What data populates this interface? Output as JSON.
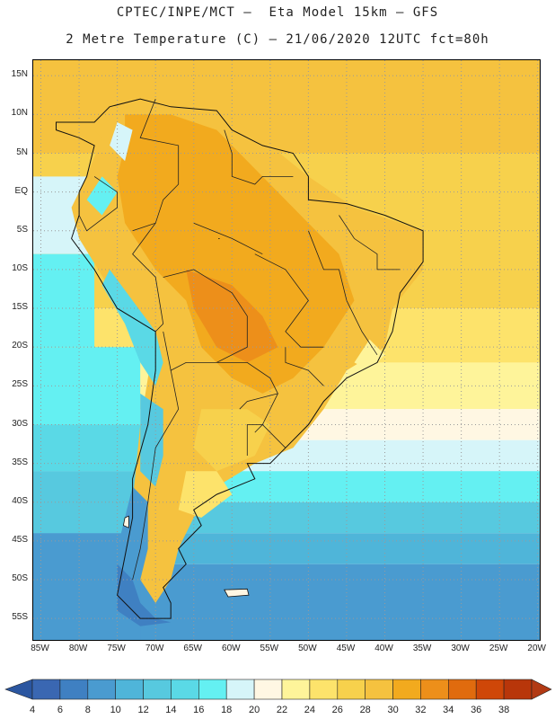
{
  "header": {
    "line1": "CPTEC/INPE/MCT –  Eta Model 15km – GFS",
    "line2": "2 Metre Temperature (C) – 21/06/2020 12UTC fct=80h"
  },
  "map": {
    "latitude_labels": [
      "15N",
      "10N",
      "5N",
      "EQ",
      "5S",
      "10S",
      "15S",
      "20S",
      "25S",
      "30S",
      "35S",
      "40S",
      "45S",
      "50S",
      "55S"
    ],
    "latitude_values": [
      15,
      10,
      5,
      0,
      -5,
      -10,
      -15,
      -20,
      -25,
      -30,
      -35,
      -40,
      -45,
      -50,
      -55
    ],
    "longitude_labels": [
      "85W",
      "80W",
      "75W",
      "70W",
      "65W",
      "60W",
      "55W",
      "50W",
      "45W",
      "40W",
      "35W",
      "30W",
      "25W",
      "20W"
    ],
    "longitude_values": [
      -85,
      -80,
      -75,
      -70,
      -65,
      -60,
      -55,
      -50,
      -45,
      -40,
      -35,
      -30,
      -25,
      -20
    ],
    "extent": {
      "lon_min": -86,
      "lon_max": -19.5,
      "lat_min": -58,
      "lat_max": 17
    },
    "ocean_bands": [
      {
        "from_lat": 17,
        "to_lat": 5,
        "value": 28
      },
      {
        "from_lat": 5,
        "to_lat": -15,
        "value": 26
      },
      {
        "from_lat": -15,
        "to_lat": -22,
        "value": 24
      },
      {
        "from_lat": -22,
        "to_lat": -28,
        "value": 22
      },
      {
        "from_lat": -28,
        "to_lat": -32,
        "value": 20
      },
      {
        "from_lat": -32,
        "to_lat": -36,
        "value": 18
      },
      {
        "from_lat": -36,
        "to_lat": -40,
        "value": 16
      },
      {
        "from_lat": -40,
        "to_lat": -44,
        "value": 12
      },
      {
        "from_lat": -44,
        "to_lat": -48,
        "value": 10
      },
      {
        "from_lat": -48,
        "to_lat": -58,
        "value": 8
      }
    ],
    "pacific_bands": [
      {
        "from_lat": 2,
        "to_lat": -8,
        "value": 18
      },
      {
        "from_lat": -8,
        "to_lat": -20,
        "value": 16
      },
      {
        "from_lat": -20,
        "to_lat": -30,
        "value": 16
      },
      {
        "from_lat": -30,
        "to_lat": -36,
        "value": 14
      },
      {
        "from_lat": -36,
        "to_lat": -44,
        "value": 12
      },
      {
        "from_lat": -44,
        "to_lat": -58,
        "value": 8
      }
    ],
    "land_regions": [
      {
        "value": 28,
        "poly": [
          [
            -78,
            8
          ],
          [
            -72,
            12
          ],
          [
            -62,
            11
          ],
          [
            -55,
            6
          ],
          [
            -50,
            2
          ],
          [
            -44,
            -2
          ],
          [
            -35,
            -5
          ],
          [
            -35,
            -10
          ],
          [
            -39,
            -15
          ],
          [
            -40,
            -20
          ],
          [
            -45,
            -23
          ],
          [
            -48,
            -28
          ],
          [
            -52,
            -33
          ],
          [
            -57,
            -35
          ],
          [
            -62,
            -38
          ],
          [
            -65,
            -42
          ],
          [
            -67,
            -46
          ],
          [
            -68,
            -50
          ],
          [
            -70,
            -53
          ],
          [
            -72,
            -50
          ],
          [
            -73,
            -40
          ],
          [
            -72,
            -30
          ],
          [
            -70,
            -18
          ],
          [
            -75,
            -14
          ],
          [
            -80,
            -6
          ],
          [
            -81,
            -2
          ],
          [
            -79,
            2
          ],
          [
            -77,
            7
          ]
        ]
      },
      {
        "value": 30,
        "poly": [
          [
            -74,
            10
          ],
          [
            -68,
            10
          ],
          [
            -62,
            8
          ],
          [
            -58,
            4
          ],
          [
            -54,
            0
          ],
          [
            -50,
            -4
          ],
          [
            -46,
            -8
          ],
          [
            -44,
            -14
          ],
          [
            -48,
            -20
          ],
          [
            -52,
            -24
          ],
          [
            -56,
            -26
          ],
          [
            -60,
            -24
          ],
          [
            -64,
            -20
          ],
          [
            -66,
            -14
          ],
          [
            -70,
            -10
          ],
          [
            -74,
            -4
          ],
          [
            -75,
            2
          ],
          [
            -74,
            6
          ]
        ]
      },
      {
        "value": 32,
        "poly": [
          [
            -66,
            -10
          ],
          [
            -60,
            -12
          ],
          [
            -56,
            -16
          ],
          [
            -54,
            -20
          ],
          [
            -58,
            -22
          ],
          [
            -62,
            -20
          ],
          [
            -65,
            -15
          ]
        ]
      },
      {
        "value": 26,
        "poly": [
          [
            -64,
            -28
          ],
          [
            -58,
            -28
          ],
          [
            -55,
            -30
          ],
          [
            -57,
            -34
          ],
          [
            -62,
            -36
          ],
          [
            -65,
            -33
          ]
        ]
      },
      {
        "value": 24,
        "poly": [
          [
            -66,
            -36
          ],
          [
            -62,
            -36
          ],
          [
            -60,
            -39
          ],
          [
            -64,
            -42
          ],
          [
            -67,
            -41
          ]
        ]
      },
      {
        "value": 22,
        "poly": [
          [
            -42,
            -19
          ],
          [
            -40,
            -21
          ],
          [
            -42,
            -23
          ],
          [
            -44,
            -22
          ]
        ]
      },
      {
        "value": 14,
        "poly": [
          [
            -76,
            -10
          ],
          [
            -73,
            -14
          ],
          [
            -70,
            -18
          ],
          [
            -69,
            -22
          ],
          [
            -70,
            -25
          ],
          [
            -72,
            -22
          ],
          [
            -74,
            -17
          ],
          [
            -77,
            -12
          ]
        ]
      },
      {
        "value": 12,
        "poly": [
          [
            -72,
            -26
          ],
          [
            -69,
            -28
          ],
          [
            -69,
            -34
          ],
          [
            -70,
            -38
          ],
          [
            -72,
            -36
          ],
          [
            -72,
            -30
          ]
        ]
      },
      {
        "value": 8,
        "poly": [
          [
            -73,
            -38
          ],
          [
            -71,
            -40
          ],
          [
            -71,
            -46
          ],
          [
            -72,
            -50
          ],
          [
            -75,
            -52
          ],
          [
            -75,
            -46
          ],
          [
            -74,
            -42
          ]
        ]
      },
      {
        "value": 6,
        "poly": [
          [
            -75,
            -48
          ],
          [
            -73,
            -50
          ],
          [
            -72,
            -53
          ],
          [
            -70,
            -55
          ],
          [
            -68,
            -55.5
          ],
          [
            -72,
            -56
          ],
          [
            -75,
            -54
          ]
        ]
      },
      {
        "value": 16,
        "poly": [
          [
            -77,
            2
          ],
          [
            -75,
            0
          ],
          [
            -77,
            -3
          ],
          [
            -79,
            -1
          ]
        ]
      },
      {
        "value": 18,
        "poly": [
          [
            -76,
            6
          ],
          [
            -74,
            4
          ],
          [
            -73,
            8
          ],
          [
            -75,
            9
          ]
        ]
      }
    ],
    "coastline": [
      [
        -83,
        9
      ],
      [
        -78,
        9
      ],
      [
        -76,
        11
      ],
      [
        -72,
        12
      ],
      [
        -68,
        11
      ],
      [
        -62,
        10.5
      ],
      [
        -60,
        8
      ],
      [
        -56,
        6
      ],
      [
        -52,
        5
      ],
      [
        -50,
        2
      ],
      [
        -50,
        -1
      ],
      [
        -45,
        -1.5
      ],
      [
        -40,
        -3
      ],
      [
        -35,
        -5
      ],
      [
        -35,
        -9
      ],
      [
        -38,
        -13
      ],
      [
        -39,
        -18
      ],
      [
        -41,
        -22
      ],
      [
        -45,
        -24
      ],
      [
        -48,
        -27
      ],
      [
        -50,
        -30
      ],
      [
        -53,
        -33
      ],
      [
        -55,
        -35
      ],
      [
        -58,
        -35
      ],
      [
        -57,
        -37
      ],
      [
        -62,
        -39
      ],
      [
        -65,
        -41
      ],
      [
        -64,
        -43
      ],
      [
        -67,
        -46
      ],
      [
        -66,
        -48
      ],
      [
        -69,
        -51
      ],
      [
        -68,
        -53
      ],
      [
        -68,
        -55
      ],
      [
        -72,
        -55
      ],
      [
        -75,
        -52
      ],
      [
        -74,
        -47
      ],
      [
        -73,
        -42
      ],
      [
        -73,
        -37
      ],
      [
        -71,
        -30
      ],
      [
        -70,
        -23
      ],
      [
        -70,
        -18
      ],
      [
        -75,
        -15
      ],
      [
        -78,
        -10
      ],
      [
        -81,
        -6
      ],
      [
        -80,
        -3
      ],
      [
        -80,
        0
      ],
      [
        -79,
        2
      ],
      [
        -78,
        6
      ],
      [
        -80,
        7
      ],
      [
        -83,
        8
      ]
    ],
    "borders": [
      [
        [
          -70,
          12
        ],
        [
          -72,
          7
        ],
        [
          -67,
          6
        ],
        [
          -67,
          1
        ],
        [
          -69,
          -1
        ],
        [
          -70,
          -4
        ],
        [
          -73,
          -5
        ]
      ],
      [
        [
          -78,
          2
        ],
        [
          -75,
          0
        ],
        [
          -75,
          -2
        ],
        [
          -79,
          -5
        ],
        [
          -80,
          -3
        ]
      ],
      [
        [
          -70,
          -4
        ],
        [
          -73,
          -8
        ],
        [
          -70,
          -11
        ],
        [
          -69,
          -17
        ],
        [
          -70,
          -18
        ]
      ],
      [
        [
          -69,
          -11
        ],
        [
          -65,
          -10
        ],
        [
          -60,
          -13
        ],
        [
          -58,
          -16
        ],
        [
          -58,
          -20
        ],
        [
          -62,
          -22
        ],
        [
          -66,
          -22
        ],
        [
          -68,
          -23
        ],
        [
          -69,
          -18
        ]
      ],
      [
        [
          -62,
          -22
        ],
        [
          -58,
          -22
        ],
        [
          -55,
          -24
        ],
        [
          -54,
          -26
        ],
        [
          -58,
          -27
        ],
        [
          -59,
          -28
        ]
      ],
      [
        [
          -54,
          -26
        ],
        [
          -56,
          -30
        ],
        [
          -58,
          -30
        ],
        [
          -58,
          -34
        ]
      ],
      [
        [
          -53,
          -33
        ],
        [
          -56,
          -30
        ],
        [
          -57,
          -31
        ]
      ],
      [
        [
          -60,
          5
        ],
        [
          -60,
          2
        ],
        [
          -57,
          1
        ],
        [
          -56,
          2
        ],
        [
          -54,
          2
        ],
        [
          -52,
          2
        ]
      ],
      [
        [
          -61,
          8
        ],
        [
          -60,
          5
        ]
      ],
      [
        [
          -68,
          -23
        ],
        [
          -67,
          -28
        ],
        [
          -70,
          -33
        ],
        [
          -71,
          -40
        ],
        [
          -72,
          -46
        ],
        [
          -73,
          -50
        ]
      ],
      [
        [
          -50,
          -5
        ],
        [
          -48,
          -10
        ],
        [
          -46,
          -10
        ],
        [
          -45,
          -14
        ]
      ],
      [
        [
          -46,
          -3
        ],
        [
          -44,
          -6
        ],
        [
          -41,
          -8
        ],
        [
          -41,
          -10
        ],
        [
          -38,
          -10
        ]
      ],
      [
        [
          -57,
          -8
        ],
        [
          -53,
          -10
        ],
        [
          -50,
          -14
        ],
        [
          -53,
          -18
        ],
        [
          -51,
          -20
        ],
        [
          -48,
          -20
        ]
      ],
      [
        [
          -65,
          -4
        ],
        [
          -60,
          -6
        ],
        [
          -56,
          -8
        ]
      ],
      [
        [
          -45,
          -14
        ],
        [
          -43,
          -18
        ],
        [
          -41,
          -21
        ]
      ],
      [
        [
          -53,
          -20
        ],
        [
          -53,
          -22
        ],
        [
          -50,
          -23
        ],
        [
          -48,
          -25
        ]
      ]
    ],
    "islands": [
      {
        "poly": [
          [
            -61,
            -51.3
          ],
          [
            -58,
            -51.2
          ],
          [
            -57.8,
            -52
          ],
          [
            -60.5,
            -52.2
          ]
        ]
      },
      {
        "poly": [
          [
            -74,
            -42
          ],
          [
            -73.5,
            -41.8
          ],
          [
            -73.5,
            -43.3
          ],
          [
            -74.2,
            -43
          ]
        ]
      },
      {
        "poly": [
          [
            -61.8,
            -6
          ],
          [
            -61.6,
            -6
          ],
          [
            -61.6,
            -6
          ]
        ]
      }
    ]
  },
  "colorbar": {
    "labels": [
      "4",
      "6",
      "8",
      "10",
      "12",
      "14",
      "16",
      "18",
      "20",
      "22",
      "24",
      "26",
      "28",
      "30",
      "32",
      "34",
      "36",
      "38"
    ],
    "values": [
      4,
      6,
      8,
      10,
      12,
      14,
      16,
      18,
      20,
      22,
      24,
      26,
      28,
      30,
      32,
      34,
      36,
      38
    ],
    "colors": [
      "#3a67b2",
      "#3f80c2",
      "#4a9bd0",
      "#4fb5d9",
      "#57c9df",
      "#5ad9e6",
      "#64f0f2",
      "#d6f5f9",
      "#fff7e3",
      "#fef49a",
      "#fde36b",
      "#f7d14c",
      "#f5c23f",
      "#f2aa1e",
      "#ed8f1a",
      "#e06b0e",
      "#cf4708",
      "#b8360a"
    ],
    "under_color": "#2b56a0",
    "over_color": "#b23a14"
  }
}
